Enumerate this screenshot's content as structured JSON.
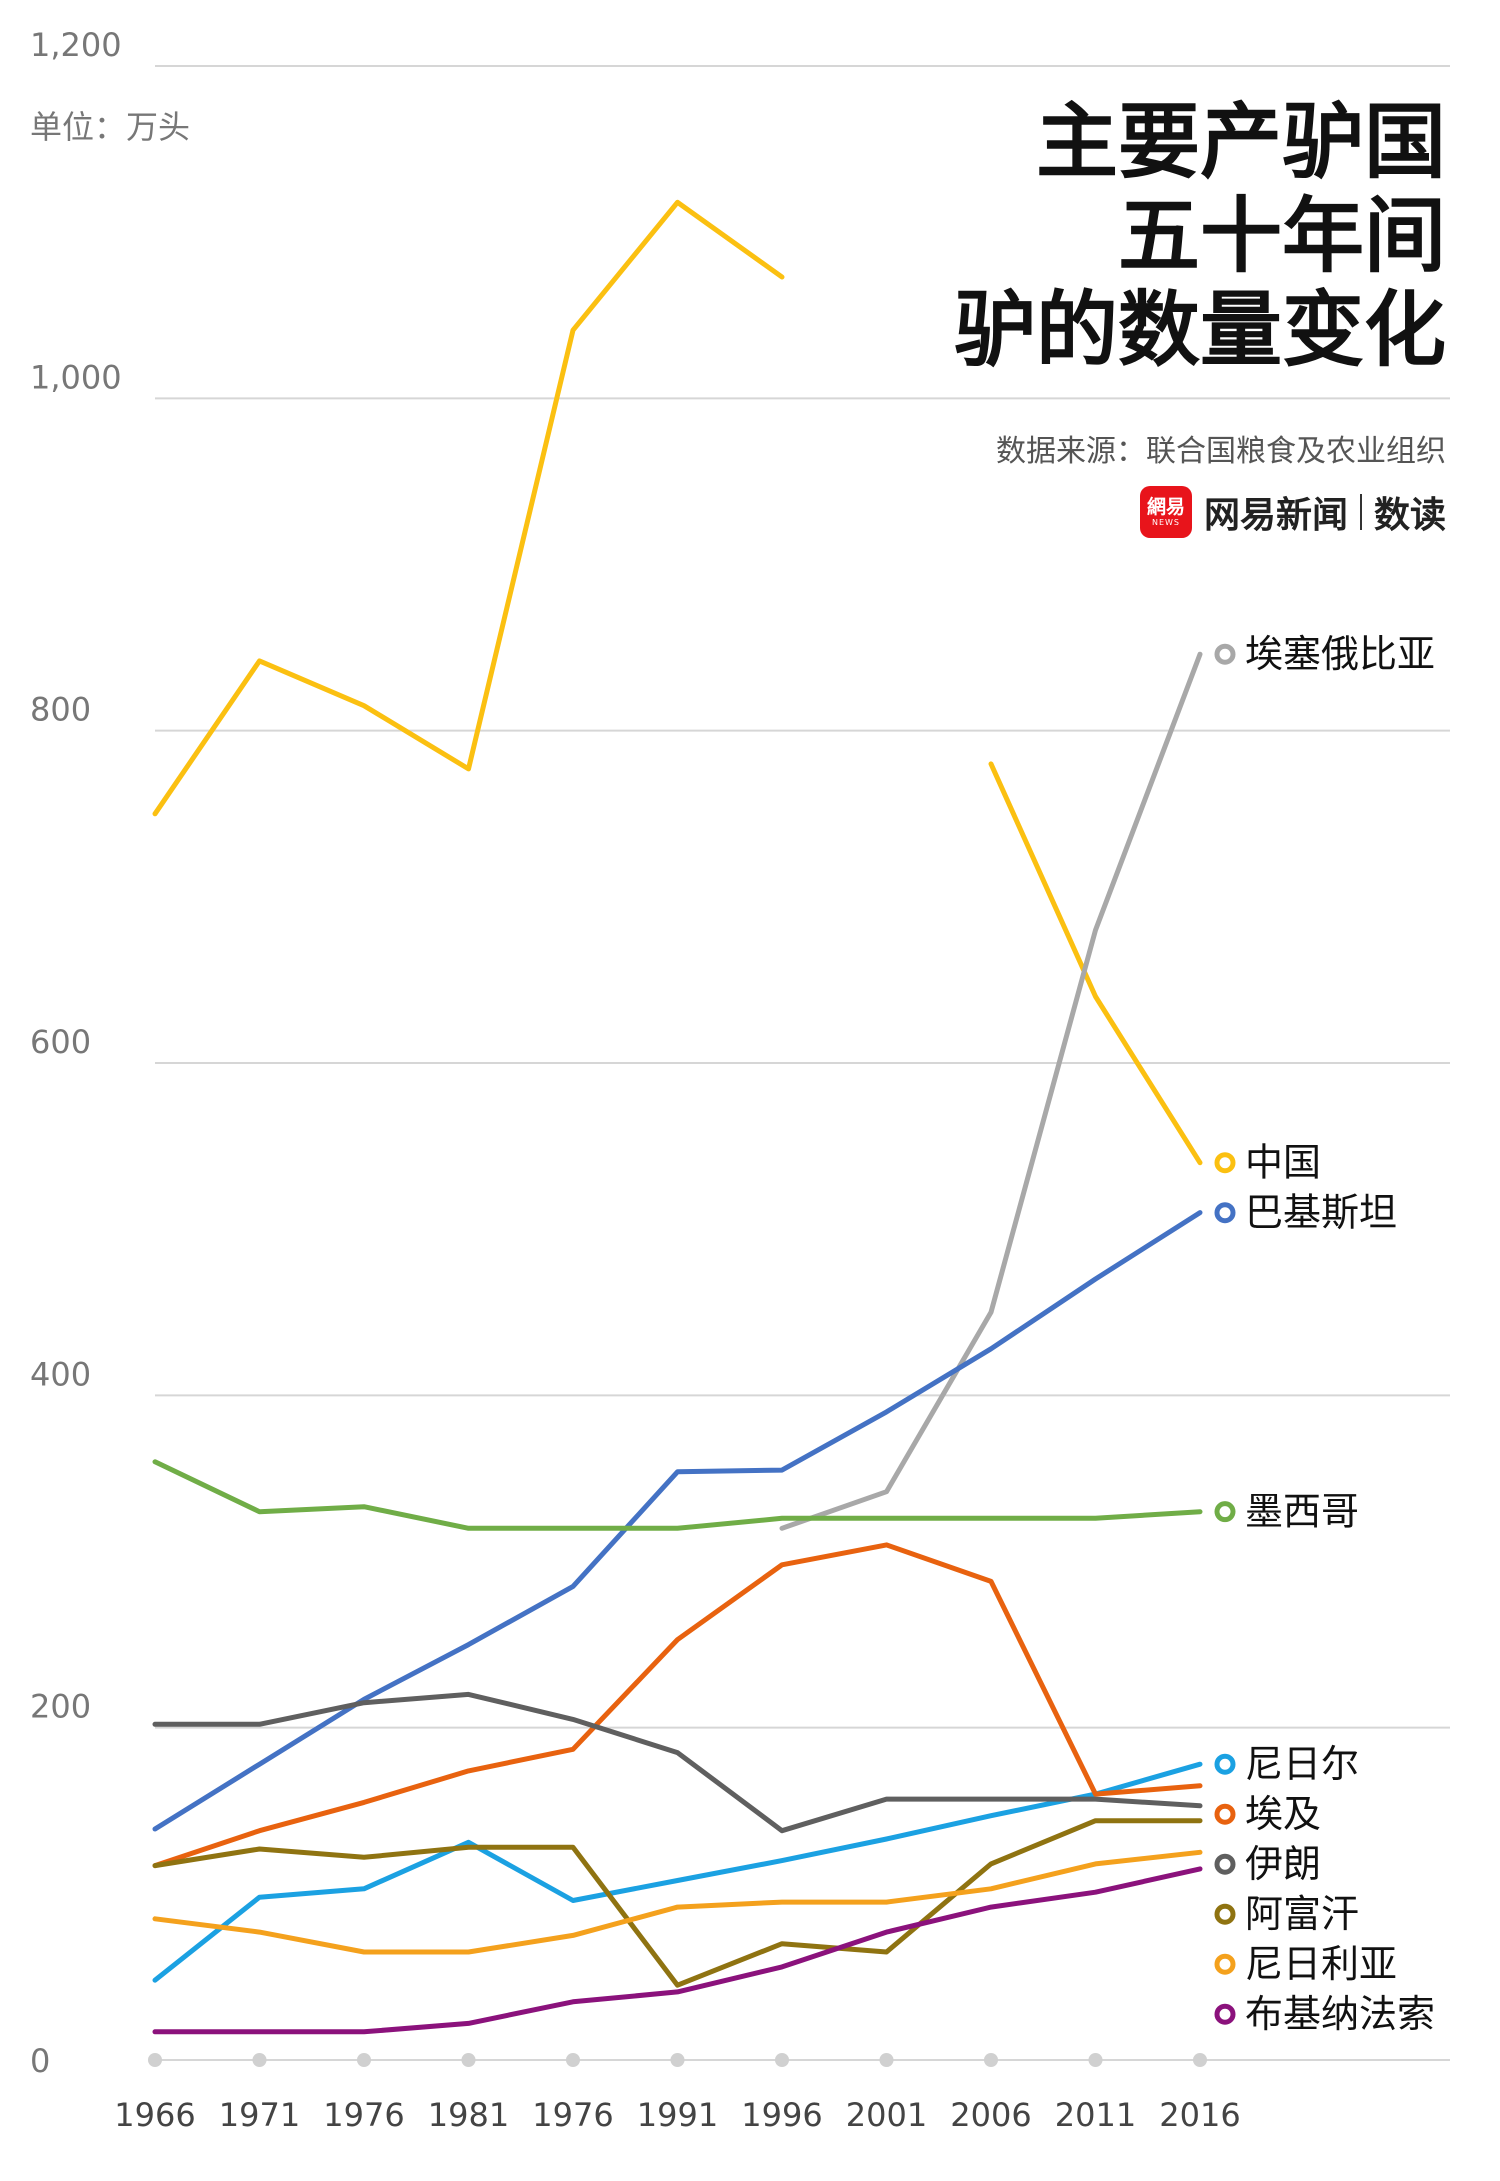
{
  "title_lines": [
    "主要产驴国",
    "五十年间",
    "驴的数量变化"
  ],
  "source": "数据来源：联合国粮食及农业组织",
  "brand": {
    "logo_top": "網易",
    "logo_bottom": "NEWS",
    "name": "网易新闻",
    "sub": "数读"
  },
  "unit": "单位：万头",
  "chart_data": {
    "type": "line",
    "x": [
      "1966",
      "1971",
      "1976",
      "1981",
      "1976",
      "1991",
      "1996",
      "2001",
      "2006",
      "2011",
      "2016"
    ],
    "ylim": [
      0,
      1200
    ],
    "yticks": [
      0,
      200,
      400,
      600,
      800,
      1000,
      1200
    ],
    "ytick_labels": [
      "0",
      "200",
      "400",
      "600",
      "800",
      "1,000",
      "1,200"
    ],
    "grid": true,
    "legend": "right-end",
    "series": [
      {
        "name": "中国",
        "color": "#fbc011",
        "values": [
          750,
          842,
          815,
          777,
          1041,
          1118,
          1073,
          null,
          780,
          640,
          540
        ]
      },
      {
        "name": "埃塞俄比亚",
        "color": "#a8a8a8",
        "values": [
          null,
          null,
          null,
          null,
          null,
          null,
          320,
          342,
          450,
          680,
          846
        ]
      },
      {
        "name": "巴基斯坦",
        "color": "#4472c4",
        "values": [
          139,
          178,
          217,
          250,
          285,
          354,
          355,
          390,
          428,
          470,
          510
        ]
      },
      {
        "name": "墨西哥",
        "color": "#70ad47",
        "values": [
          360,
          330,
          333,
          320,
          320,
          320,
          326,
          326,
          326,
          326,
          330
        ]
      },
      {
        "name": "尼日尔",
        "color": "#1ba1e2",
        "values": [
          48,
          98,
          103,
          131,
          96,
          108,
          120,
          133,
          147,
          160,
          178
        ]
      },
      {
        "name": "埃及",
        "color": "#e8620f",
        "values": [
          117,
          138,
          155,
          174,
          187,
          253,
          298,
          310,
          288,
          160,
          165
        ]
      },
      {
        "name": "伊朗",
        "color": "#5f5f5f",
        "values": [
          202,
          202,
          215,
          220,
          205,
          185,
          138,
          157,
          157,
          157,
          153
        ]
      },
      {
        "name": "阿富汗",
        "color": "#8f7311",
        "values": [
          117,
          127,
          122,
          128,
          128,
          45,
          70,
          65,
          118,
          144,
          144
        ]
      },
      {
        "name": "尼日利亚",
        "color": "#f4a11d",
        "values": [
          85,
          77,
          65,
          65,
          75,
          92,
          95,
          95,
          103,
          118,
          125
        ]
      },
      {
        "name": "布基纳法索",
        "color": "#8b127c",
        "values": [
          17,
          17,
          17,
          22,
          35,
          41,
          56,
          77,
          92,
          101,
          115
        ]
      }
    ]
  }
}
